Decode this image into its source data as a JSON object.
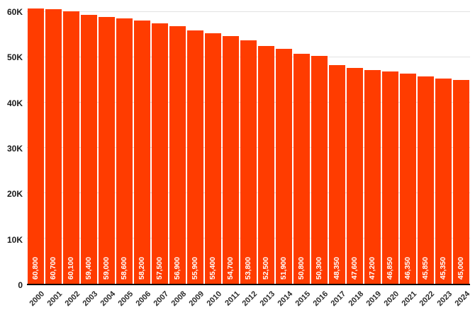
{
  "chart_data": {
    "type": "bar",
    "title": "",
    "xlabel": "",
    "ylabel": "",
    "categories": [
      "2000",
      "2001",
      "2002",
      "2003",
      "2004",
      "2005",
      "2006",
      "2007",
      "2008",
      "2009",
      "2010",
      "2011",
      "2012",
      "2013",
      "2014",
      "2015",
      "2016",
      "2017",
      "2018",
      "2019",
      "2020",
      "2021",
      "2022",
      "2023",
      "2024"
    ],
    "values": [
      60800,
      60700,
      60100,
      59400,
      59000,
      58600,
      58200,
      57500,
      56900,
      55900,
      55400,
      54700,
      53800,
      52500,
      51900,
      50800,
      50300,
      48350,
      47600,
      47200,
      46850,
      46350,
      45850,
      45350,
      45000
    ],
    "value_labels": [
      "60,800",
      "60,700",
      "60,100",
      "59,400",
      "59,000",
      "58,600",
      "58,200",
      "57,500",
      "56,900",
      "55,900",
      "55,400",
      "54,700",
      "53,800",
      "52,500",
      "51,900",
      "50,800",
      "50,300",
      "48,350",
      "47,600",
      "47,200",
      "46,850",
      "46,350",
      "45,850",
      "45,350",
      "45,000"
    ],
    "ylim": [
      0,
      60800
    ],
    "yticks": [
      {
        "value": 0,
        "label": "0"
      },
      {
        "value": 10000,
        "label": "10K"
      },
      {
        "value": 20000,
        "label": "20K"
      },
      {
        "value": 30000,
        "label": "30K"
      },
      {
        "value": 40000,
        "label": "40K"
      },
      {
        "value": 50000,
        "label": "50K"
      },
      {
        "value": 60000,
        "label": "60K"
      }
    ],
    "grid": true,
    "legend": "none",
    "bar_color": "#FF3C00",
    "value_label_color": "#FFFFFF",
    "gridline_color": "#E2E2E2",
    "axis_text_color": "#1A1A1A",
    "baseline_color": "#000000"
  }
}
